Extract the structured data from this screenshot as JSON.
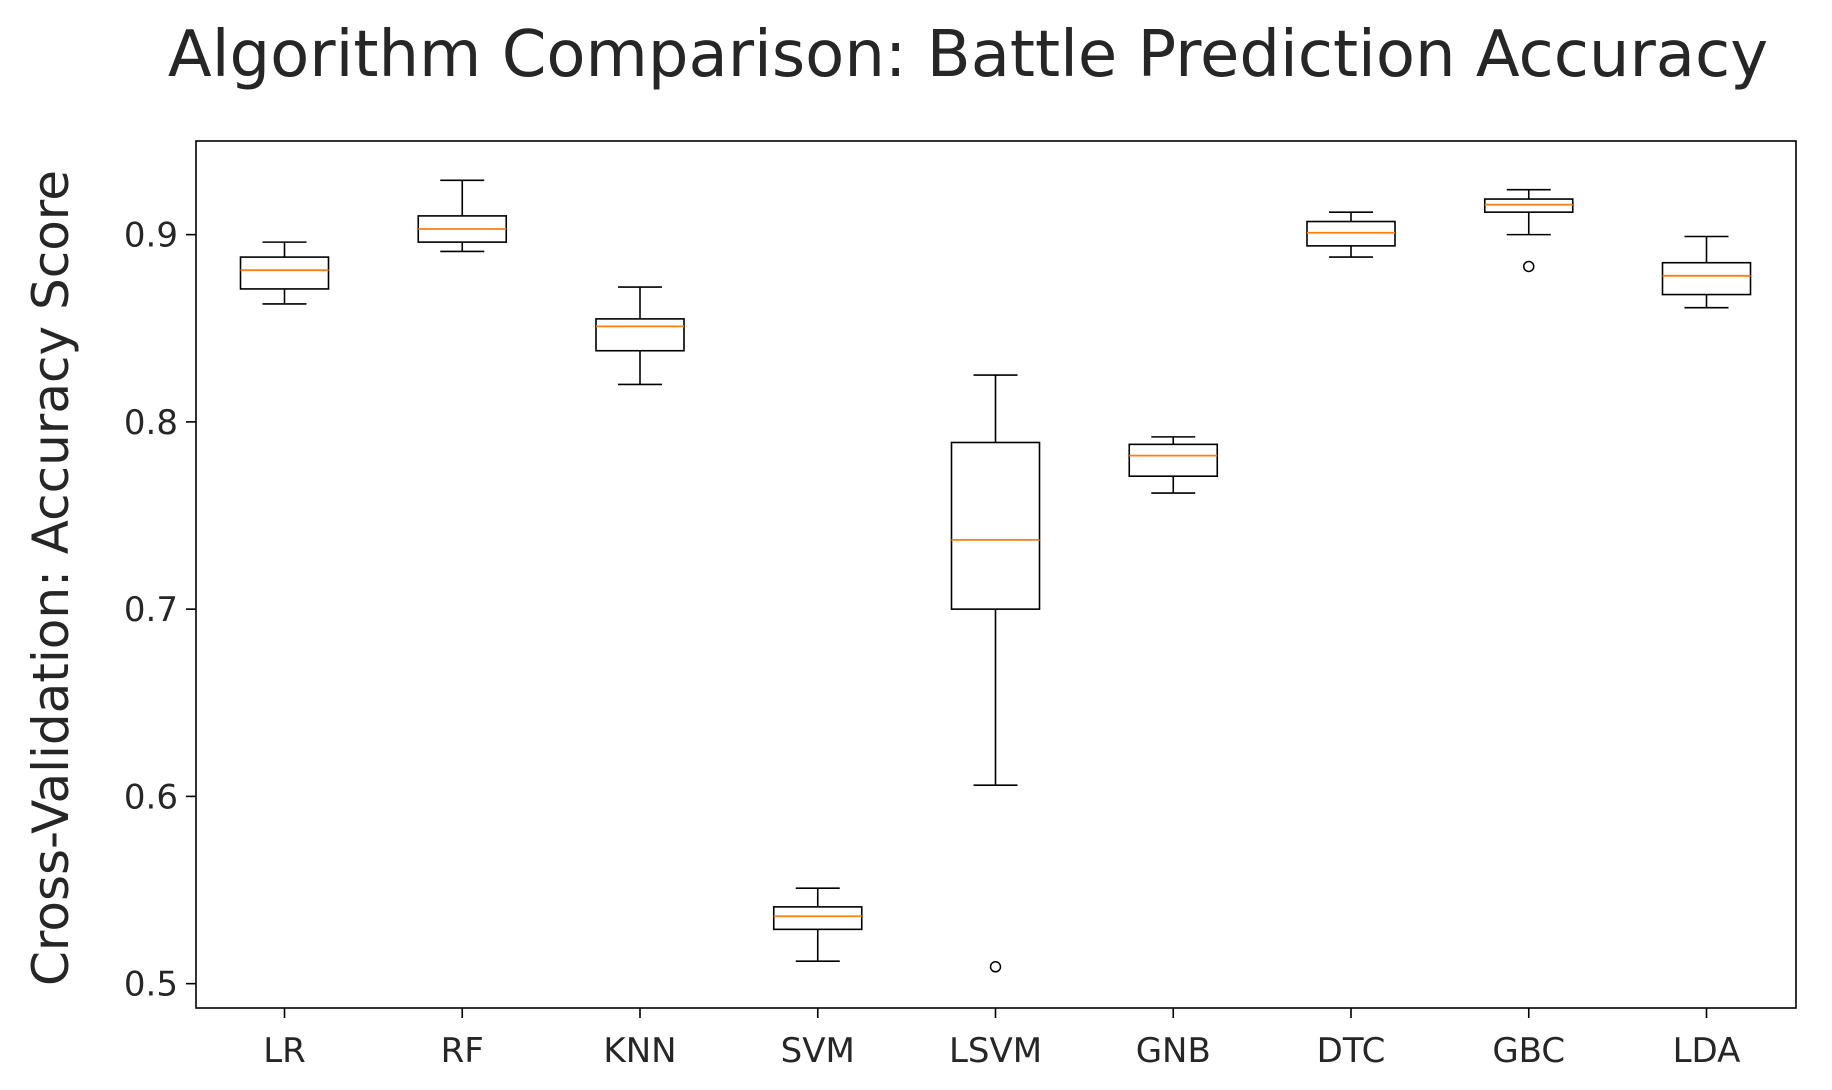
{
  "chart_data": {
    "type": "box",
    "title": "Algorithm Comparison: Battle Prediction Accuracy",
    "xlabel": "",
    "ylabel": "Cross-Validation: Accuracy Score",
    "ylim": [
      0.487,
      0.95
    ],
    "yticks": [
      {
        "value": 0.5,
        "label": "0.5"
      },
      {
        "value": 0.6,
        "label": "0.6"
      },
      {
        "value": 0.7,
        "label": "0.7"
      },
      {
        "value": 0.8,
        "label": "0.8"
      },
      {
        "value": 0.9,
        "label": "0.9"
      }
    ],
    "grid": false,
    "colors": {
      "box": "#000000",
      "median": "#ff7f0e",
      "flier": "#000000"
    },
    "categories": [
      "LR",
      "RF",
      "KNN",
      "SVM",
      "LSVM",
      "GNB",
      "DTC",
      "GBC",
      "LDA"
    ],
    "boxes": [
      {
        "label": "LR",
        "whislo": 0.863,
        "q1": 0.871,
        "med": 0.881,
        "q3": 0.888,
        "whishi": 0.896,
        "fliers": []
      },
      {
        "label": "RF",
        "whislo": 0.891,
        "q1": 0.896,
        "med": 0.903,
        "q3": 0.91,
        "whishi": 0.929,
        "fliers": []
      },
      {
        "label": "KNN",
        "whislo": 0.82,
        "q1": 0.838,
        "med": 0.851,
        "q3": 0.855,
        "whishi": 0.872,
        "fliers": []
      },
      {
        "label": "SVM",
        "whislo": 0.512,
        "q1": 0.529,
        "med": 0.536,
        "q3": 0.541,
        "whishi": 0.551,
        "fliers": []
      },
      {
        "label": "LSVM",
        "whislo": 0.606,
        "q1": 0.7,
        "med": 0.737,
        "q3": 0.789,
        "whishi": 0.825,
        "fliers": [
          0.509
        ]
      },
      {
        "label": "GNB",
        "whislo": 0.762,
        "q1": 0.771,
        "med": 0.782,
        "q3": 0.788,
        "whishi": 0.792,
        "fliers": []
      },
      {
        "label": "DTC",
        "whislo": 0.888,
        "q1": 0.894,
        "med": 0.901,
        "q3": 0.907,
        "whishi": 0.912,
        "fliers": []
      },
      {
        "label": "GBC",
        "whislo": 0.9,
        "q1": 0.912,
        "med": 0.916,
        "q3": 0.919,
        "whishi": 0.924,
        "fliers": [
          0.883
        ]
      },
      {
        "label": "LDA",
        "whislo": 0.861,
        "q1": 0.868,
        "med": 0.878,
        "q3": 0.885,
        "whishi": 0.899,
        "fliers": []
      }
    ]
  }
}
